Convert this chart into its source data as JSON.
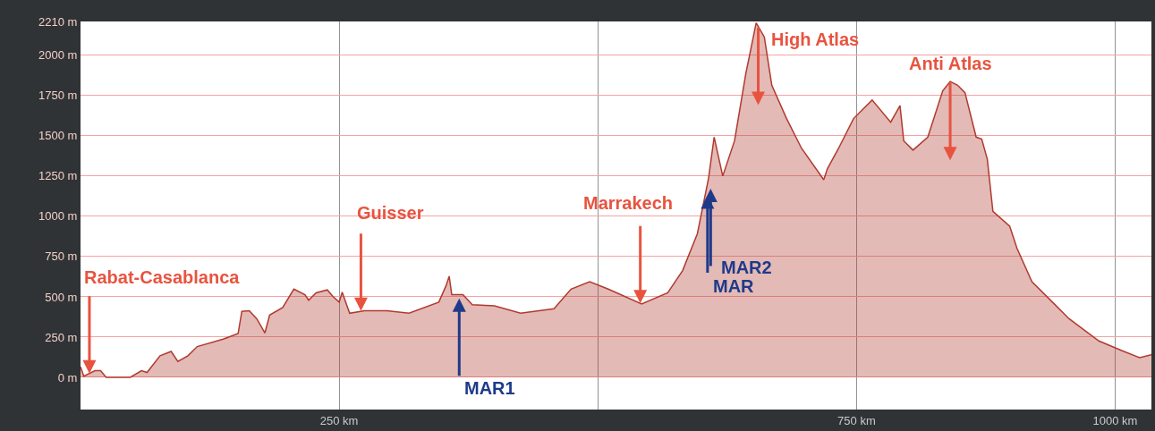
{
  "chart_data": {
    "type": "area",
    "x": [
      0,
      3.2,
      14,
      19.4,
      24.8,
      48.1,
      58.9,
      64.3,
      76.9,
      87.6,
      94.1,
      103.8,
      112.8,
      137.9,
      152.3,
      155.9,
      163.1,
      170.3,
      178.2,
      182.8,
      195.4,
      206.2,
      216.9,
      220.5,
      227.7,
      238.5,
      243.9,
      250,
      252.9,
      260.1,
      274.4,
      296,
      317.5,
      346.3,
      353.4,
      356.3,
      358.8,
      369.6,
      378.6,
      400.1,
      425.3,
      457.6,
      474.1,
      492.1,
      510,
      542.3,
      567.5,
      581.9,
      596.2,
      607,
      612.4,
      620.7,
      632.1,
      642.9,
      653,
      660.9,
      668.1,
      682.4,
      696.8,
      718.3,
      721.9,
      732.7,
      747.1,
      765.1,
      783,
      792,
      795.6,
      804.6,
      818.9,
      833.3,
      840.5,
      847.7,
      854.8,
      865.6,
      871,
      876.4,
      881.8,
      898,
      905.1,
      919.5,
      941.1,
      955.4,
      984.2,
      1005.7,
      1023.7,
      1035
    ],
    "series": [
      {
        "color": "#b03a2e",
        "values": [
          65,
          7,
          41,
          41,
          0,
          0,
          41,
          30,
          134,
          161,
          99,
          134,
          191,
          237,
          272,
          410,
          414,
          364,
          276,
          387,
          433,
          548,
          513,
          479,
          525,
          543,
          502,
          467,
          529,
          398,
          414,
          414,
          398,
          467,
          571,
          628,
          513,
          513,
          451,
          444,
          398,
          426,
          548,
          594,
          548,
          456,
          525,
          663,
          893,
          1238,
          1492,
          1250,
          1469,
          1883,
          2201,
          2113,
          1814,
          1607,
          1423,
          1227,
          1296,
          1423,
          1607,
          1722,
          1584,
          1687,
          1469,
          1411,
          1492,
          1779,
          1837,
          1814,
          1768,
          1492,
          1480,
          1354,
          1031,
          939,
          801,
          594,
          456,
          364,
          226,
          168,
          122,
          140
        ]
      }
    ],
    "xlim": [
      0,
      1035
    ],
    "xticks": [
      {
        "value": 250,
        "label": "250 km"
      },
      {
        "value": 500,
        "label": null
      },
      {
        "value": 750,
        "label": "750 km"
      },
      {
        "value": 1000,
        "label": "1000 km"
      }
    ],
    "ylim": [
      -200,
      2210
    ],
    "yticks": [
      {
        "value": 0,
        "label": "0 m"
      },
      {
        "value": 250,
        "label": "250 m"
      },
      {
        "value": 500,
        "label": "500 m"
      },
      {
        "value": 750,
        "label": "750 m"
      },
      {
        "value": 1000,
        "label": "1000 m"
      },
      {
        "value": 1250,
        "label": "1250 m"
      },
      {
        "value": 1500,
        "label": "1500 m"
      },
      {
        "value": 1750,
        "label": "1750 m"
      },
      {
        "value": 2000,
        "label": "2000 m"
      },
      {
        "value": 2210,
        "label": "2210 m"
      }
    ],
    "grid": true,
    "annotations": [
      {
        "text": "Rabat-Casablanca",
        "x": 8.6,
        "y": 24
      },
      {
        "text": "Guisser",
        "x": 271,
        "y": 412
      },
      {
        "text": "MAR1",
        "x": 366,
        "y": 490
      },
      {
        "text": "Marrakech",
        "x": 541,
        "y": 460
      },
      {
        "text": "MAR",
        "x": 606,
        "y": 1130
      },
      {
        "text": "MAR2",
        "x": 609,
        "y": 1171
      },
      {
        "text": "High Atlas",
        "x": 655,
        "y": 2179
      },
      {
        "text": "Anti Atlas",
        "x": 840.5,
        "y": 1837
      }
    ]
  }
}
